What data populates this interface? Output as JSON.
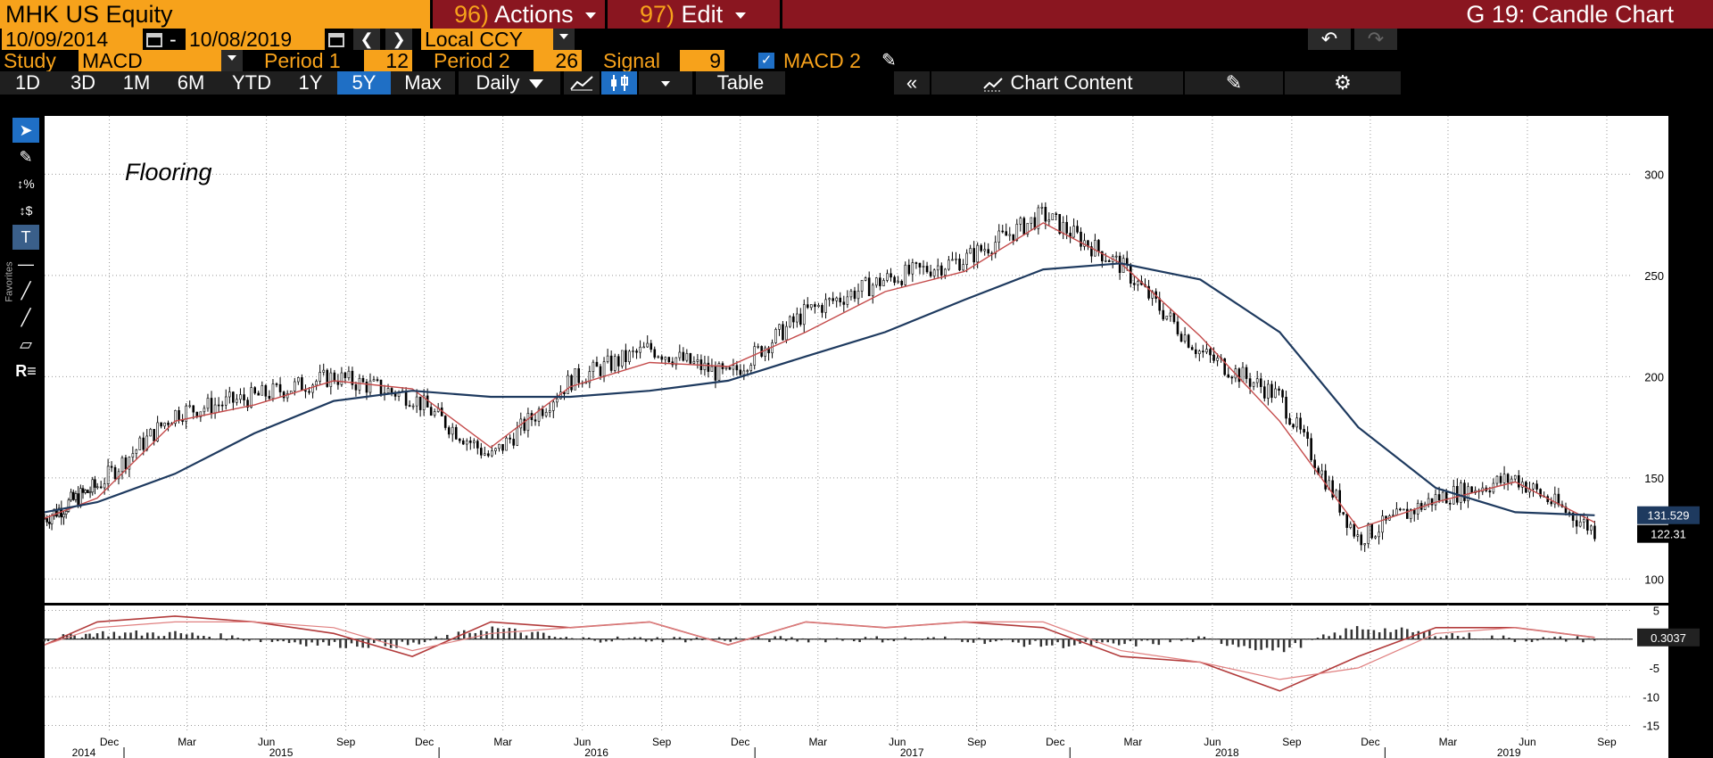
{
  "header": {
    "ticker": "MHK US Equity",
    "actions_num": "96)",
    "actions_label": "Actions",
    "edit_num": "97)",
    "edit_label": "Edit",
    "function_title": "G 19: Candle Chart"
  },
  "daterow": {
    "start_date": "10/09/2014",
    "dash": "-",
    "end_date": "10/08/2019",
    "currency": "Local CCY"
  },
  "study": {
    "label": "Study",
    "value": "MACD",
    "period1_label": "Period 1",
    "period1_value": "12",
    "period2_label": "Period 2",
    "period2_value": "26",
    "signal_label": "Signal",
    "signal_value": "9",
    "macd2_label": "MACD 2"
  },
  "toolbar": {
    "ranges": [
      "1D",
      "3D",
      "1M",
      "6M",
      "YTD",
      "1Y",
      "5Y",
      "Max"
    ],
    "selected_range": "5Y",
    "frequency": "Daily",
    "table_label": "Table",
    "chart_content_label": "Chart Content"
  },
  "sidebar_label": "Favorites",
  "annotation": "Flooring",
  "colors": {
    "accent_orange": "#f7a21b",
    "header_red": "#8a1620",
    "selected_blue": "#1f6fc5",
    "ma_long": "#1e3a5f",
    "ma_short": "#c44a4a"
  },
  "chart_data": [
    {
      "type": "candlestick",
      "title": "",
      "y_ticks": [
        100,
        150,
        200,
        250,
        300
      ],
      "ylim": [
        90,
        320
      ],
      "x_month_labels": [
        "Dec",
        "Mar",
        "Jun",
        "Sep",
        "Dec",
        "Mar",
        "Jun",
        "Sep",
        "Dec",
        "Mar",
        "Jun",
        "Sep",
        "Dec",
        "Mar",
        "Jun",
        "Sep",
        "Dec",
        "Mar",
        "Jun",
        "Sep"
      ],
      "x_year_labels": [
        "2014",
        "2015",
        "2016",
        "2017",
        "2018",
        "2019"
      ],
      "x_dates": [
        "2014-10",
        "2014-12",
        "2015-03",
        "2015-06",
        "2015-09",
        "2015-12",
        "2016-03",
        "2016-06",
        "2016-09",
        "2016-12",
        "2017-03",
        "2017-06",
        "2017-09",
        "2017-12",
        "2018-03",
        "2018-06",
        "2018-09",
        "2018-12",
        "2019-03",
        "2019-06",
        "2019-09"
      ],
      "series": [
        {
          "name": "Price",
          "values": [
            130,
            146,
            182,
            190,
            200,
            190,
            160,
            198,
            214,
            200,
            232,
            248,
            258,
            280,
            255,
            212,
            190,
            120,
            140,
            150,
            124
          ]
        },
        {
          "values": [
            130,
            140,
            178,
            186,
            198,
            194,
            165,
            195,
            207,
            205,
            222,
            242,
            252,
            276,
            256,
            220,
            178,
            125,
            138,
            148,
            128
          ]
        },
        {
          "values": [
            133,
            138,
            152,
            172,
            188,
            193,
            190,
            190,
            193,
            198,
            210,
            222,
            238,
            253,
            256,
            248,
            222,
            175,
            145,
            133,
            131.5
          ]
        }
      ],
      "price_labels": [
        "131.529",
        "122.31"
      ],
      "grid": true
    },
    {
      "type": "bar",
      "title": "",
      "y_ticks": [
        5,
        0,
        -5,
        -10,
        -15
      ],
      "ylim": [
        -16,
        6
      ],
      "value_label": "0.3037",
      "x_dates": [
        "2014-10",
        "2014-12",
        "2015-03",
        "2015-06",
        "2015-09",
        "2015-12",
        "2016-03",
        "2016-06",
        "2016-09",
        "2016-12",
        "2017-03",
        "2017-06",
        "2017-09",
        "2017-12",
        "2018-03",
        "2018-06",
        "2018-09",
        "2018-12",
        "2019-03",
        "2019-06",
        "2019-09"
      ],
      "series": [
        {
          "values": [
            -1,
            3,
            4,
            3,
            1,
            -3,
            3,
            2,
            3,
            -1,
            3,
            2,
            3,
            2,
            -3,
            -4,
            -9,
            -3,
            2,
            2,
            0.3
          ]
        },
        {
          "values": [
            -1,
            2,
            3,
            3,
            2,
            -2,
            1,
            2,
            3,
            -1,
            3,
            2,
            3,
            3,
            -2,
            -4,
            -7,
            -5,
            1,
            2,
            0.3
          ]
        }
      ]
    }
  ]
}
